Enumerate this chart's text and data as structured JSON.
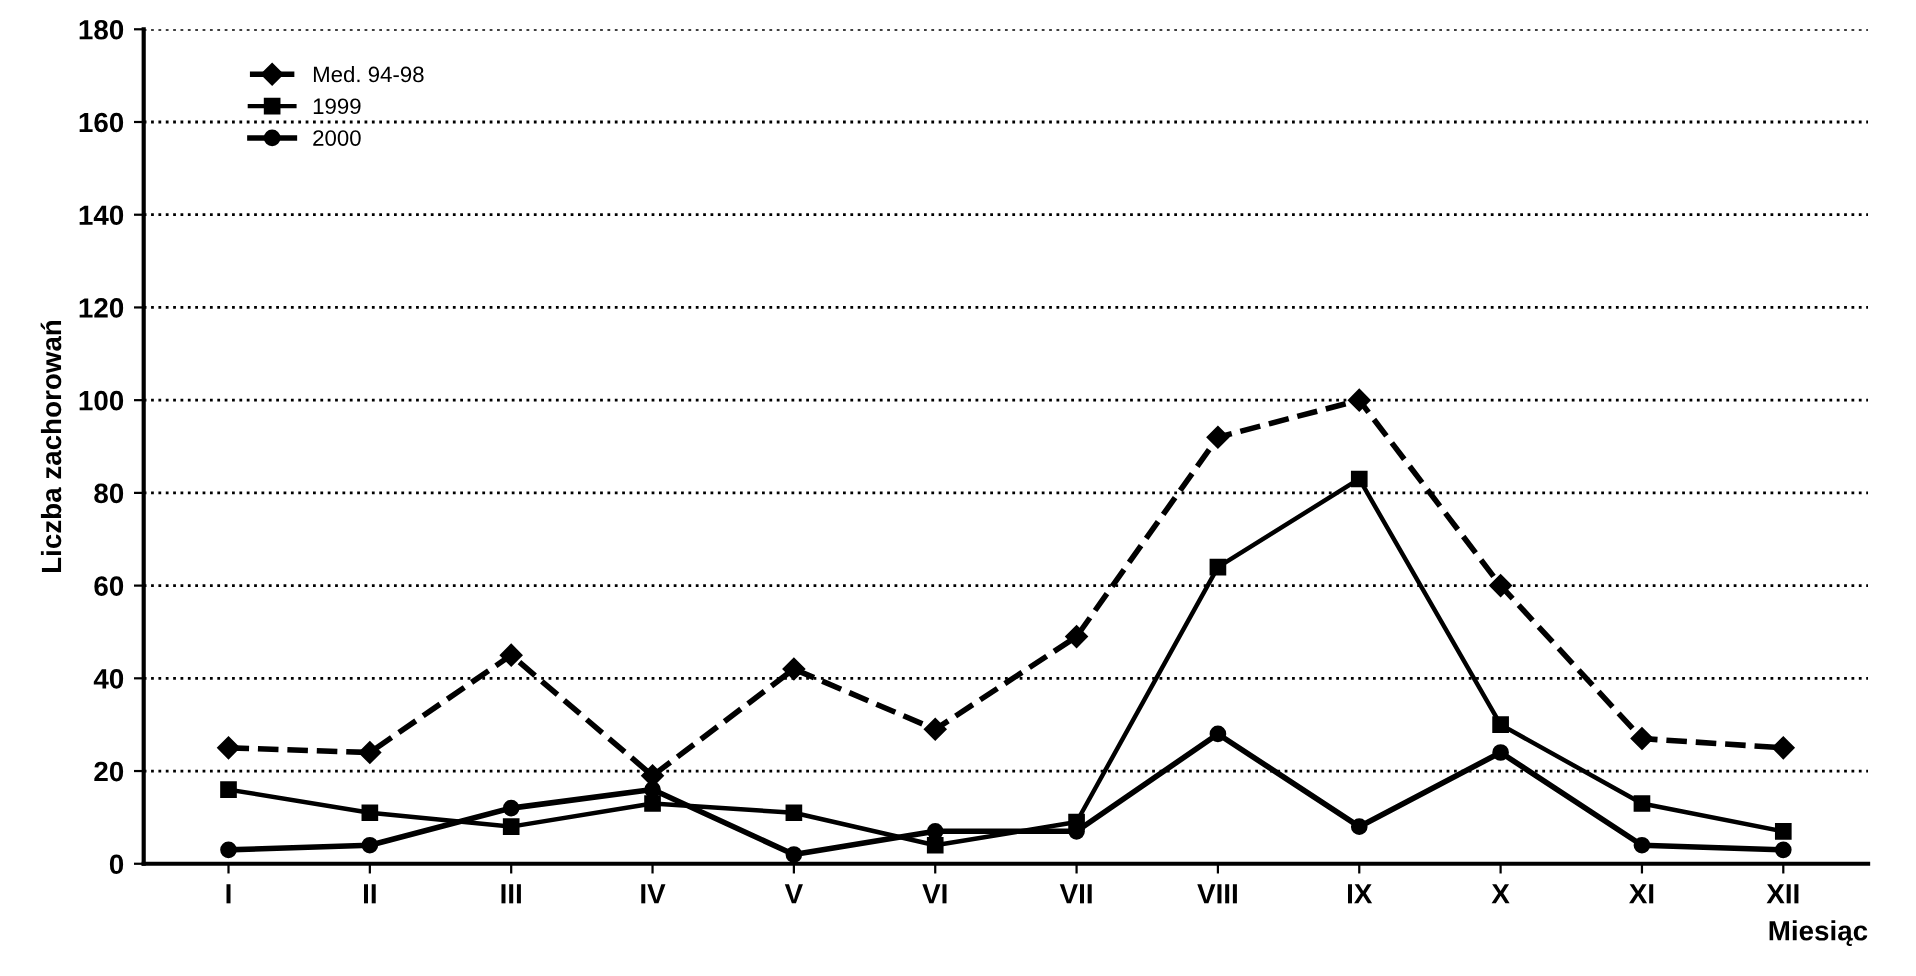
{
  "chart_data": {
    "type": "line",
    "xlabel": "Miesiąc",
    "ylabel": "Liczba zachorowań",
    "categories": [
      "I",
      "II",
      "III",
      "IV",
      "V",
      "VI",
      "VII",
      "VIII",
      "IX",
      "X",
      "XI",
      "XII"
    ],
    "series": [
      {
        "name": "Med. 94-98",
        "color": "#000000",
        "marker": "diamond",
        "line_style": "dashed",
        "values": [
          25,
          24,
          45,
          19,
          42,
          29,
          49,
          92,
          100,
          60,
          27,
          25
        ]
      },
      {
        "name": "1999",
        "color": "#000000",
        "marker": "square",
        "line_style": "solid",
        "values": [
          16,
          11,
          8,
          13,
          11,
          4,
          9,
          64,
          83,
          30,
          13,
          7
        ]
      },
      {
        "name": "2000",
        "color": "#000000",
        "marker": "circle",
        "line_style": "solid",
        "values": [
          3,
          4,
          12,
          16,
          2,
          7,
          7,
          28,
          8,
          24,
          4,
          3
        ]
      }
    ],
    "ylim": [
      0,
      180
    ],
    "yticks": [
      0,
      20,
      40,
      60,
      80,
      100,
      120,
      140,
      160,
      180
    ],
    "grid": "y",
    "legend": "top left"
  }
}
